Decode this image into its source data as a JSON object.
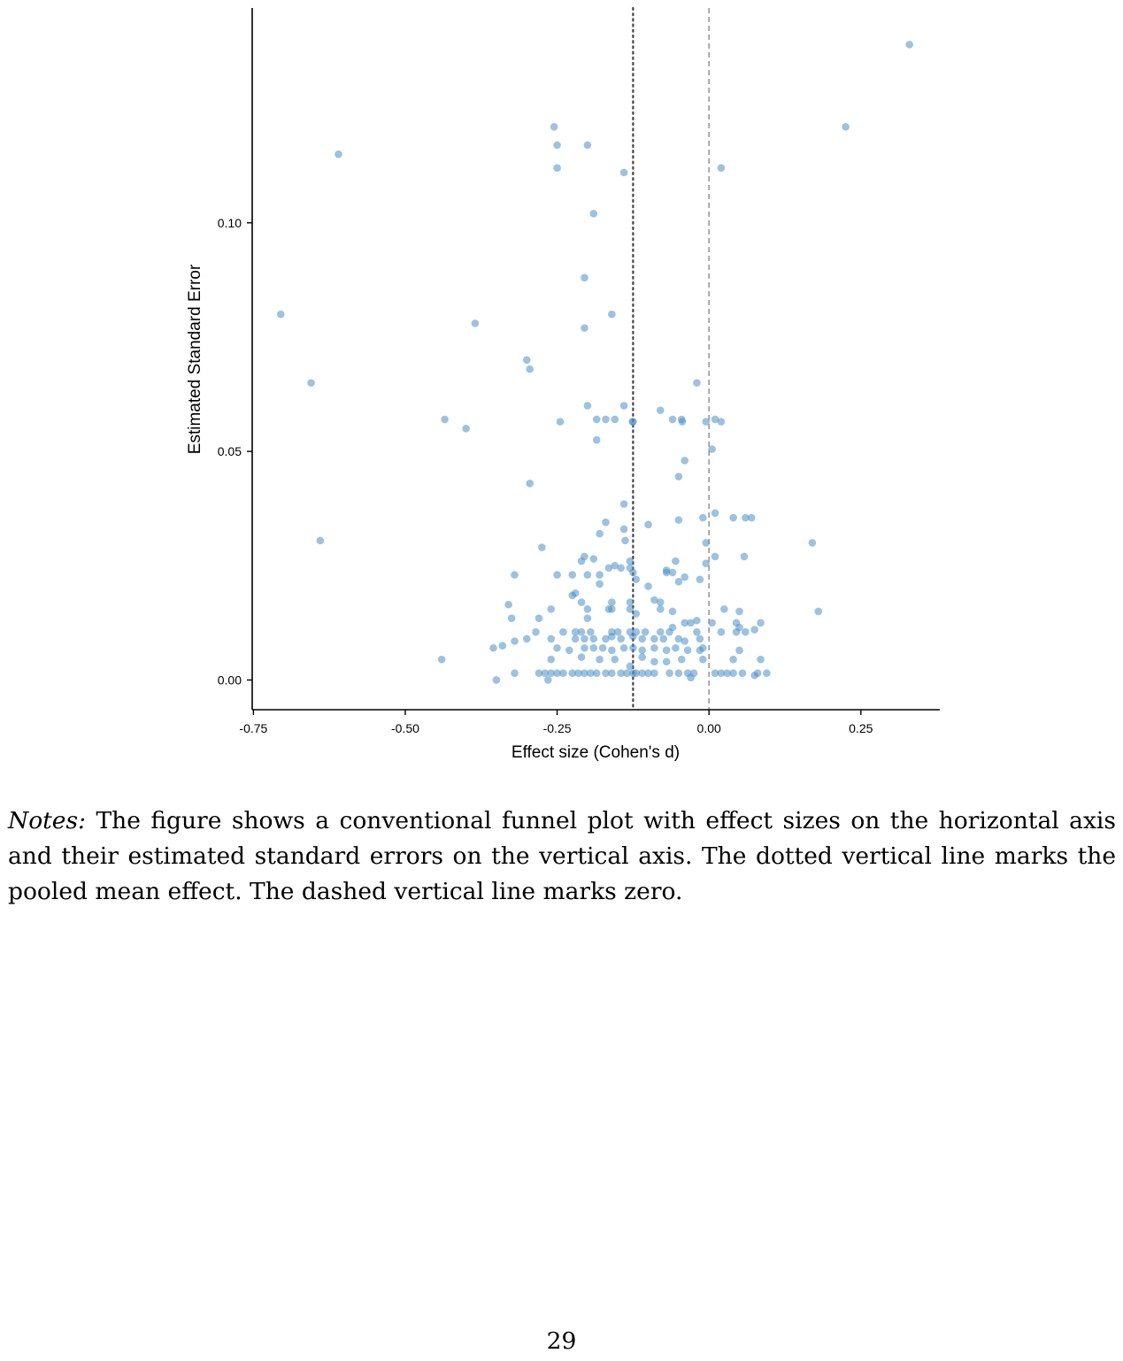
{
  "chart_data": {
    "type": "scatter",
    "xlabel": "Effect size (Cohen's d)",
    "ylabel": "Estimated Standard Error",
    "xlim": [
      -0.752,
      0.38
    ],
    "ylim": [
      -0.0065,
      0.147
    ],
    "x_ticks": [
      "-0.75",
      "-0.50",
      "-0.25",
      "0.00",
      "0.25"
    ],
    "y_ticks": [
      "0.00",
      "0.05",
      "0.10"
    ],
    "grid": false,
    "legend": "none",
    "point_color": "#4a90c4",
    "reference_lines": [
      {
        "style": "dotted",
        "x": -0.125,
        "color": "#444444"
      },
      {
        "style": "dashed",
        "x": 0.0,
        "color": "#999999"
      }
    ],
    "points": [
      [
        0.33,
        0.139
      ],
      [
        0.225,
        0.121
      ],
      [
        -0.255,
        0.121
      ],
      [
        -0.25,
        0.117
      ],
      [
        -0.2,
        0.117
      ],
      [
        -0.61,
        0.115
      ],
      [
        -0.25,
        0.112
      ],
      [
        0.02,
        0.112
      ],
      [
        -0.14,
        0.111
      ],
      [
        -0.19,
        0.102
      ],
      [
        -0.205,
        0.088
      ],
      [
        -0.705,
        0.08
      ],
      [
        -0.16,
        0.08
      ],
      [
        -0.385,
        0.078
      ],
      [
        -0.205,
        0.077
      ],
      [
        -0.3,
        0.07
      ],
      [
        -0.295,
        0.068
      ],
      [
        -0.655,
        0.065
      ],
      [
        -0.02,
        0.065
      ],
      [
        -0.2,
        0.06
      ],
      [
        -0.14,
        0.06
      ],
      [
        -0.08,
        0.059
      ],
      [
        -0.435,
        0.057
      ],
      [
        -0.245,
        0.0565
      ],
      [
        -0.185,
        0.057
      ],
      [
        -0.17,
        0.057
      ],
      [
        -0.155,
        0.057
      ],
      [
        -0.125,
        0.0565
      ],
      [
        -0.126,
        0.0565
      ],
      [
        -0.06,
        0.057
      ],
      [
        -0.045,
        0.057
      ],
      [
        -0.044,
        0.0565
      ],
      [
        -0.005,
        0.0565
      ],
      [
        0.01,
        0.057
      ],
      [
        0.02,
        0.0565
      ],
      [
        -0.4,
        0.055
      ],
      [
        -0.185,
        0.0525
      ],
      [
        0.005,
        0.0505
      ],
      [
        -0.04,
        0.048
      ],
      [
        -0.05,
        0.0445
      ],
      [
        -0.295,
        0.043
      ],
      [
        -0.14,
        0.0385
      ],
      [
        0.01,
        0.0365
      ],
      [
        -0.01,
        0.0355
      ],
      [
        0.04,
        0.0355
      ],
      [
        0.06,
        0.0355
      ],
      [
        0.07,
        0.0355
      ],
      [
        -0.17,
        0.0345
      ],
      [
        -0.05,
        0.035
      ],
      [
        -0.1,
        0.034
      ],
      [
        -0.14,
        0.033
      ],
      [
        -0.18,
        0.032
      ],
      [
        -0.138,
        0.0305
      ],
      [
        -0.64,
        0.0305
      ],
      [
        0.17,
        0.03
      ],
      [
        -0.005,
        0.03
      ],
      [
        -0.275,
        0.029
      ],
      [
        -0.205,
        0.027
      ],
      [
        -0.19,
        0.0265
      ],
      [
        0.01,
        0.027
      ],
      [
        0.058,
        0.027
      ],
      [
        -0.21,
        0.026
      ],
      [
        -0.13,
        0.026
      ],
      [
        -0.055,
        0.026
      ],
      [
        -0.005,
        0.0255
      ],
      [
        -0.165,
        0.0245
      ],
      [
        -0.155,
        0.025
      ],
      [
        -0.145,
        0.0245
      ],
      [
        -0.13,
        0.0245
      ],
      [
        -0.07,
        0.024
      ],
      [
        -0.06,
        0.0235
      ],
      [
        -0.32,
        0.023
      ],
      [
        -0.25,
        0.023
      ],
      [
        -0.225,
        0.023
      ],
      [
        -0.2,
        0.023
      ],
      [
        -0.18,
        0.023
      ],
      [
        -0.125,
        0.0235
      ],
      [
        -0.07,
        0.0235
      ],
      [
        -0.04,
        0.0225
      ],
      [
        -0.12,
        0.022
      ],
      [
        -0.05,
        0.0215
      ],
      [
        -0.015,
        0.022
      ],
      [
        -0.18,
        0.021
      ],
      [
        -0.1,
        0.0205
      ],
      [
        -0.22,
        0.019
      ],
      [
        -0.225,
        0.0185
      ],
      [
        -0.21,
        0.017
      ],
      [
        -0.16,
        0.017
      ],
      [
        -0.13,
        0.017
      ],
      [
        -0.09,
        0.0175
      ],
      [
        -0.08,
        0.017
      ],
      [
        -0.33,
        0.0165
      ],
      [
        -0.2,
        0.0155
      ],
      [
        -0.165,
        0.0155
      ],
      [
        -0.16,
        0.0155
      ],
      [
        -0.26,
        0.0155
      ],
      [
        -0.13,
        0.0155
      ],
      [
        -0.08,
        0.0155
      ],
      [
        -0.06,
        0.015
      ],
      [
        0.025,
        0.0155
      ],
      [
        0.05,
        0.015
      ],
      [
        0.18,
        0.015
      ],
      [
        -0.12,
        0.0145
      ],
      [
        -0.325,
        0.0135
      ],
      [
        -0.28,
        0.0135
      ],
      [
        -0.2,
        0.0135
      ],
      [
        -0.04,
        0.0125
      ],
      [
        -0.03,
        0.0125
      ],
      [
        -0.02,
        0.013
      ],
      [
        0.005,
        0.0125
      ],
      [
        0.045,
        0.0125
      ],
      [
        0.085,
        0.0125
      ],
      [
        -0.06,
        0.0115
      ],
      [
        -0.285,
        0.0105
      ],
      [
        -0.24,
        0.0105
      ],
      [
        -0.22,
        0.0105
      ],
      [
        -0.21,
        0.0105
      ],
      [
        -0.195,
        0.0105
      ],
      [
        -0.16,
        0.0105
      ],
      [
        -0.15,
        0.0105
      ],
      [
        -0.13,
        0.0105
      ],
      [
        -0.12,
        0.0105
      ],
      [
        -0.105,
        0.0105
      ],
      [
        -0.08,
        0.0105
      ],
      [
        -0.065,
        0.0105
      ],
      [
        -0.02,
        0.0105
      ],
      [
        0.02,
        0.0105
      ],
      [
        0.045,
        0.0105
      ],
      [
        0.06,
        0.0105
      ],
      [
        0.075,
        0.011
      ],
      [
        0.05,
        0.0115
      ],
      [
        -0.32,
        0.0085
      ],
      [
        -0.3,
        0.009
      ],
      [
        -0.26,
        0.009
      ],
      [
        -0.22,
        0.009
      ],
      [
        -0.205,
        0.009
      ],
      [
        -0.19,
        0.009
      ],
      [
        -0.17,
        0.009
      ],
      [
        -0.16,
        0.0095
      ],
      [
        -0.145,
        0.009
      ],
      [
        -0.125,
        0.0095
      ],
      [
        -0.11,
        0.009
      ],
      [
        -0.09,
        0.009
      ],
      [
        -0.075,
        0.009
      ],
      [
        -0.05,
        0.009
      ],
      [
        -0.04,
        0.0085
      ],
      [
        -0.015,
        0.009
      ],
      [
        -0.355,
        0.007
      ],
      [
        -0.34,
        0.0075
      ],
      [
        -0.25,
        0.007
      ],
      [
        -0.23,
        0.0065
      ],
      [
        -0.205,
        0.007
      ],
      [
        -0.19,
        0.007
      ],
      [
        -0.175,
        0.007
      ],
      [
        -0.16,
        0.0065
      ],
      [
        -0.14,
        0.007
      ],
      [
        -0.125,
        0.007
      ],
      [
        -0.11,
        0.0065
      ],
      [
        -0.09,
        0.007
      ],
      [
        -0.07,
        0.0065
      ],
      [
        -0.055,
        0.007
      ],
      [
        -0.035,
        0.0065
      ],
      [
        -0.015,
        0.0065
      ],
      [
        -0.01,
        0.007
      ],
      [
        0.05,
        0.0065
      ],
      [
        -0.44,
        0.0045
      ],
      [
        -0.26,
        0.0045
      ],
      [
        -0.21,
        0.005
      ],
      [
        -0.18,
        0.0045
      ],
      [
        -0.155,
        0.0045
      ],
      [
        -0.11,
        0.005
      ],
      [
        -0.09,
        0.004
      ],
      [
        -0.07,
        0.004
      ],
      [
        -0.045,
        0.0045
      ],
      [
        -0.01,
        0.0045
      ],
      [
        0.04,
        0.0045
      ],
      [
        0.085,
        0.0045
      ],
      [
        -0.13,
        0.003
      ],
      [
        -0.32,
        0.0015
      ],
      [
        -0.28,
        0.0015
      ],
      [
        -0.27,
        0.0015
      ],
      [
        -0.26,
        0.0015
      ],
      [
        -0.25,
        0.0015
      ],
      [
        -0.24,
        0.0015
      ],
      [
        -0.225,
        0.0015
      ],
      [
        -0.215,
        0.0015
      ],
      [
        -0.205,
        0.0015
      ],
      [
        -0.195,
        0.0015
      ],
      [
        -0.185,
        0.0015
      ],
      [
        -0.17,
        0.0015
      ],
      [
        -0.16,
        0.0015
      ],
      [
        -0.145,
        0.0015
      ],
      [
        -0.135,
        0.0015
      ],
      [
        -0.125,
        0.0015
      ],
      [
        -0.12,
        0.0015
      ],
      [
        -0.11,
        0.0015
      ],
      [
        -0.1,
        0.0015
      ],
      [
        -0.09,
        0.0015
      ],
      [
        -0.065,
        0.0015
      ],
      [
        -0.05,
        0.0015
      ],
      [
        -0.035,
        0.0015
      ],
      [
        -0.025,
        0.0015
      ],
      [
        0.01,
        0.0015
      ],
      [
        0.02,
        0.0015
      ],
      [
        0.03,
        0.0015
      ],
      [
        0.04,
        0.0015
      ],
      [
        0.055,
        0.0015
      ],
      [
        0.08,
        0.0015
      ],
      [
        0.095,
        0.0015
      ],
      [
        -0.35,
        0.0
      ],
      [
        -0.265,
        0.0
      ],
      [
        -0.03,
        0.0005
      ],
      [
        0.075,
        0.001
      ]
    ]
  },
  "notes": {
    "lead": "Notes:",
    "text": " The figure shows a conventional funnel plot with effect sizes on the horizontal axis and their estimated standard errors on the vertical axis. The dotted vertical line marks the pooled mean effect. The dashed vertical line marks zero."
  },
  "page_number": "29"
}
